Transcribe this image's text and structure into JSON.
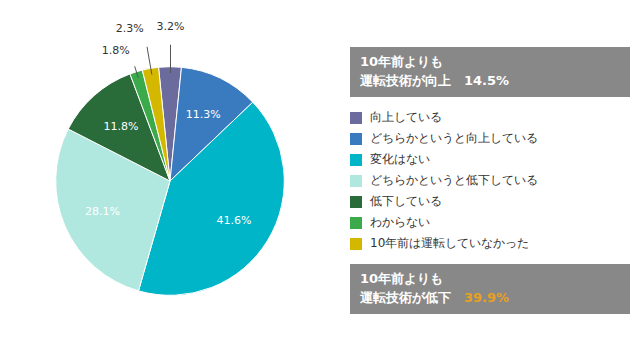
{
  "chart_data": {
    "type": "pie",
    "categories": [
      "向上している",
      "どちらかというと向上している",
      "変化はない",
      "どちらかというと低下している",
      "低下している",
      "わからない",
      "10年前は運転していなかった"
    ],
    "values": [
      3.2,
      11.3,
      41.6,
      28.1,
      11.8,
      1.8,
      2.3
    ],
    "value_labels": [
      "3.2%",
      "11.3%",
      "41.6%",
      "28.1%",
      "11.8%",
      "1.8%",
      "2.3%"
    ],
    "colors": [
      "#6b6b9e",
      "#3a7abf",
      "#00b5c8",
      "#b0e8e0",
      "#2a6b3a",
      "#3aaa4a",
      "#d4b800"
    ],
    "data_labels": true,
    "legend": "right",
    "annotations": [
      {
        "lines": [
          "10年前よりも",
          "運転技術が向上"
        ],
        "value_label": "14.5%",
        "value_color": "#ffffff",
        "color": "#ffffff",
        "background": "#888888"
      },
      {
        "lines": [
          "10年前よりも",
          "運転技術が低下"
        ],
        "value_label": "39.9%",
        "value_color": "#e8a020",
        "color": "#ffffff",
        "background": "#888888"
      }
    ]
  }
}
